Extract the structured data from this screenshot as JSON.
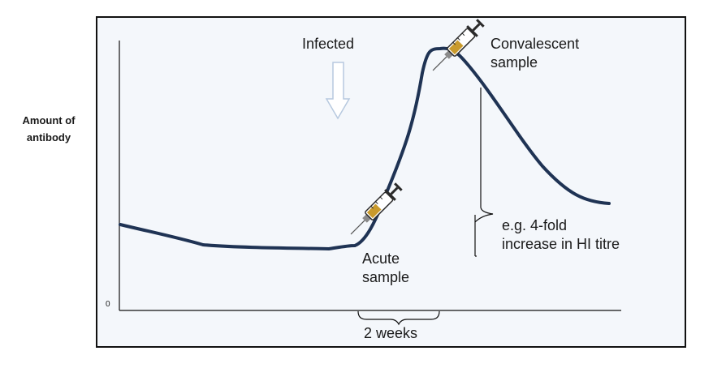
{
  "y_axis_label": [
    "Amount of",
    "antibody"
  ],
  "y_origin_label": "0",
  "annotations": {
    "infected": "Infected",
    "acute": [
      "Acute",
      "sample"
    ],
    "convalescent": [
      "Convalescent",
      "sample"
    ],
    "increase": [
      "e.g. 4-fold",
      "increase in HI titre"
    ],
    "duration": "2 weeks"
  },
  "colors": {
    "curve": "#1f3354",
    "arrow": "#b7c9df",
    "syringe_fill": "#c99a2c",
    "frame_bg": "#f4f7fb"
  },
  "icons": [
    "syringe-icon",
    "down-arrow-icon",
    "brace-icon"
  ]
}
